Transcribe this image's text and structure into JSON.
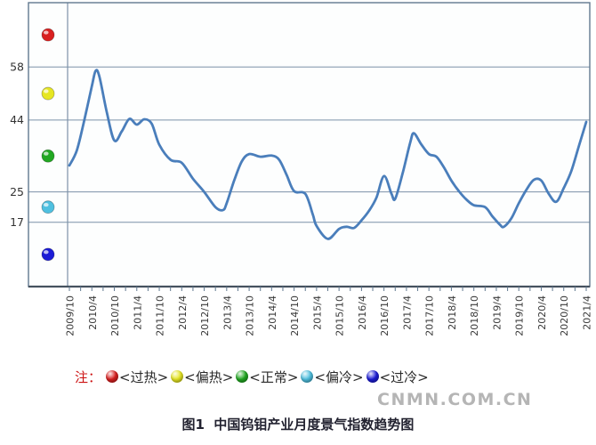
{
  "page": {
    "background": "#ffffff"
  },
  "watermark": {
    "text": "CNMN.COM.CN",
    "color": "#b5b5b5"
  },
  "caption": {
    "text": "图1  中国钨钼产业月度景气指数趋势图"
  },
  "legend": {
    "prefix": "注：",
    "prefix_color": "#cc1111",
    "items": [
      {
        "key": "overheated",
        "icon": "red-ball-icon",
        "color": "#d92020",
        "label": "<过热>"
      },
      {
        "key": "warm",
        "icon": "yellow-ball-icon",
        "color": "#e6e622",
        "label": "<偏热>"
      },
      {
        "key": "normal",
        "icon": "green-ball-icon",
        "color": "#22a822",
        "label": "<正常>"
      },
      {
        "key": "cool",
        "icon": "lightblue-ball-icon",
        "color": "#4fc0e0",
        "label": "<偏冷>"
      },
      {
        "key": "cold",
        "icon": "blue-ball-icon",
        "color": "#1c1cd6",
        "label": "<过冷>"
      }
    ]
  },
  "chart_data": {
    "type": "line",
    "title": "图1  中国钨钼产业月度景气指数趋势图",
    "series_name": "中国钨钼产业月度景气指数",
    "line_color": "#4a7ebb",
    "grid_color": "#7d91a8",
    "frame_color": "#60788f",
    "axis_color": "#45525f",
    "label_color": "#333333",
    "grid_on": true,
    "y_axis": {
      "min": 0,
      "max": 75,
      "tick_values": [
        58,
        44,
        25,
        17
      ]
    },
    "x_axis": {
      "start": "2009/10",
      "end": "2021/4",
      "months_per_label": 6,
      "minor_tick_months": 3,
      "tick_labels": [
        "2009/10",
        "2010/4",
        "2010/10",
        "2011/4",
        "2011/10",
        "2012/4",
        "2012/10",
        "2013/4",
        "2013/10",
        "2014/4",
        "2014/10",
        "2015/4",
        "2015/10",
        "2016/4",
        "2016/10",
        "2017/4",
        "2017/10",
        "2018/4",
        "2018/10",
        "2019/4",
        "2019/10",
        "2020/4",
        "2020/10",
        "2021/4"
      ]
    },
    "zones": [
      {
        "key": "overheated",
        "label": "过热",
        "color": "#d92020",
        "min": 58,
        "max": 75
      },
      {
        "key": "warm",
        "label": "偏热",
        "color": "#e6e622",
        "min": 44,
        "max": 58
      },
      {
        "key": "normal",
        "label": "正常",
        "color": "#22a822",
        "min": 25,
        "max": 44
      },
      {
        "key": "cool",
        "label": "偏冷",
        "color": "#4fc0e0",
        "min": 17,
        "max": 25
      },
      {
        "key": "cold",
        "label": "过冷",
        "color": "#1c1cd6",
        "min": 0,
        "max": 17
      }
    ],
    "points": [
      {
        "date": "2009/10",
        "m": 0,
        "value": 32
      },
      {
        "date": "2009/12",
        "m": 2,
        "value": 36
      },
      {
        "date": "2010/2",
        "m": 4,
        "value": 44
      },
      {
        "date": "2010/4",
        "m": 6,
        "value": 53
      },
      {
        "date": "2010/5",
        "m": 7,
        "value": 57
      },
      {
        "date": "2010/6",
        "m": 8,
        "value": 55.5
      },
      {
        "date": "2010/8",
        "m": 10,
        "value": 46
      },
      {
        "date": "2010/10",
        "m": 12,
        "value": 38.6
      },
      {
        "date": "2010/12",
        "m": 14,
        "value": 41
      },
      {
        "date": "2011/2",
        "m": 16,
        "value": 44.3
      },
      {
        "date": "2011/4",
        "m": 18,
        "value": 42.8
      },
      {
        "date": "2011/6",
        "m": 20,
        "value": 44.2
      },
      {
        "date": "2011/8",
        "m": 22,
        "value": 43
      },
      {
        "date": "2011/10",
        "m": 24,
        "value": 37.5
      },
      {
        "date": "2012/1",
        "m": 27,
        "value": 33.5
      },
      {
        "date": "2012/4",
        "m": 30,
        "value": 32.7
      },
      {
        "date": "2012/7",
        "m": 33,
        "value": 28.5
      },
      {
        "date": "2012/10",
        "m": 36,
        "value": 25
      },
      {
        "date": "2013/1",
        "m": 39,
        "value": 21
      },
      {
        "date": "2013/3",
        "m": 41,
        "value": 20.2
      },
      {
        "date": "2013/4",
        "m": 42,
        "value": 22
      },
      {
        "date": "2013/6",
        "m": 44,
        "value": 28
      },
      {
        "date": "2013/8",
        "m": 46,
        "value": 33
      },
      {
        "date": "2013/10",
        "m": 48,
        "value": 35
      },
      {
        "date": "2014/1",
        "m": 51,
        "value": 34.3
      },
      {
        "date": "2014/4",
        "m": 54,
        "value": 34.6
      },
      {
        "date": "2014/6",
        "m": 56,
        "value": 33.5
      },
      {
        "date": "2014/8",
        "m": 58,
        "value": 29.5
      },
      {
        "date": "2014/10",
        "m": 60,
        "value": 25.2
      },
      {
        "date": "2015/1",
        "m": 63,
        "value": 24.5
      },
      {
        "date": "2015/3",
        "m": 65,
        "value": 19
      },
      {
        "date": "2015/4",
        "m": 66,
        "value": 16
      },
      {
        "date": "2015/7",
        "m": 69,
        "value": 12.6
      },
      {
        "date": "2015/10",
        "m": 72,
        "value": 15.2
      },
      {
        "date": "2015/12",
        "m": 74,
        "value": 15.8
      },
      {
        "date": "2016/2",
        "m": 76,
        "value": 15.5
      },
      {
        "date": "2016/4",
        "m": 78,
        "value": 17.5
      },
      {
        "date": "2016/6",
        "m": 80,
        "value": 20
      },
      {
        "date": "2016/8",
        "m": 82,
        "value": 23.5
      },
      {
        "date": "2016/10",
        "m": 84,
        "value": 29.2
      },
      {
        "date": "2016/12",
        "m": 86,
        "value": 24.5
      },
      {
        "date": "2017/1",
        "m": 87,
        "value": 23.2
      },
      {
        "date": "2017/3",
        "m": 89,
        "value": 30
      },
      {
        "date": "2017/5",
        "m": 91,
        "value": 38
      },
      {
        "date": "2017/6",
        "m": 92,
        "value": 40.5
      },
      {
        "date": "2017/8",
        "m": 94,
        "value": 37.5
      },
      {
        "date": "2017/10",
        "m": 96,
        "value": 35
      },
      {
        "date": "2017/12",
        "m": 98,
        "value": 34.3
      },
      {
        "date": "2018/2",
        "m": 100,
        "value": 31.5
      },
      {
        "date": "2018/4",
        "m": 102,
        "value": 28
      },
      {
        "date": "2018/6",
        "m": 104,
        "value": 25.2
      },
      {
        "date": "2018/8",
        "m": 106,
        "value": 23
      },
      {
        "date": "2018/10",
        "m": 108,
        "value": 21.5
      },
      {
        "date": "2019/1",
        "m": 111,
        "value": 21
      },
      {
        "date": "2019/3",
        "m": 113,
        "value": 18.5
      },
      {
        "date": "2019/5",
        "m": 115,
        "value": 16.3
      },
      {
        "date": "2019/6",
        "m": 116,
        "value": 15.8
      },
      {
        "date": "2019/8",
        "m": 118,
        "value": 18
      },
      {
        "date": "2019/10",
        "m": 120,
        "value": 22
      },
      {
        "date": "2019/12",
        "m": 122,
        "value": 25.5
      },
      {
        "date": "2020/2",
        "m": 124,
        "value": 28.2
      },
      {
        "date": "2020/4",
        "m": 126,
        "value": 28
      },
      {
        "date": "2020/6",
        "m": 128,
        "value": 24.5
      },
      {
        "date": "2020/8",
        "m": 130,
        "value": 22.4
      },
      {
        "date": "2020/10",
        "m": 132,
        "value": 26
      },
      {
        "date": "2020/12",
        "m": 134,
        "value": 30.5
      },
      {
        "date": "2021/2",
        "m": 136,
        "value": 37
      },
      {
        "date": "2021/4",
        "m": 138,
        "value": 43.5
      }
    ]
  }
}
